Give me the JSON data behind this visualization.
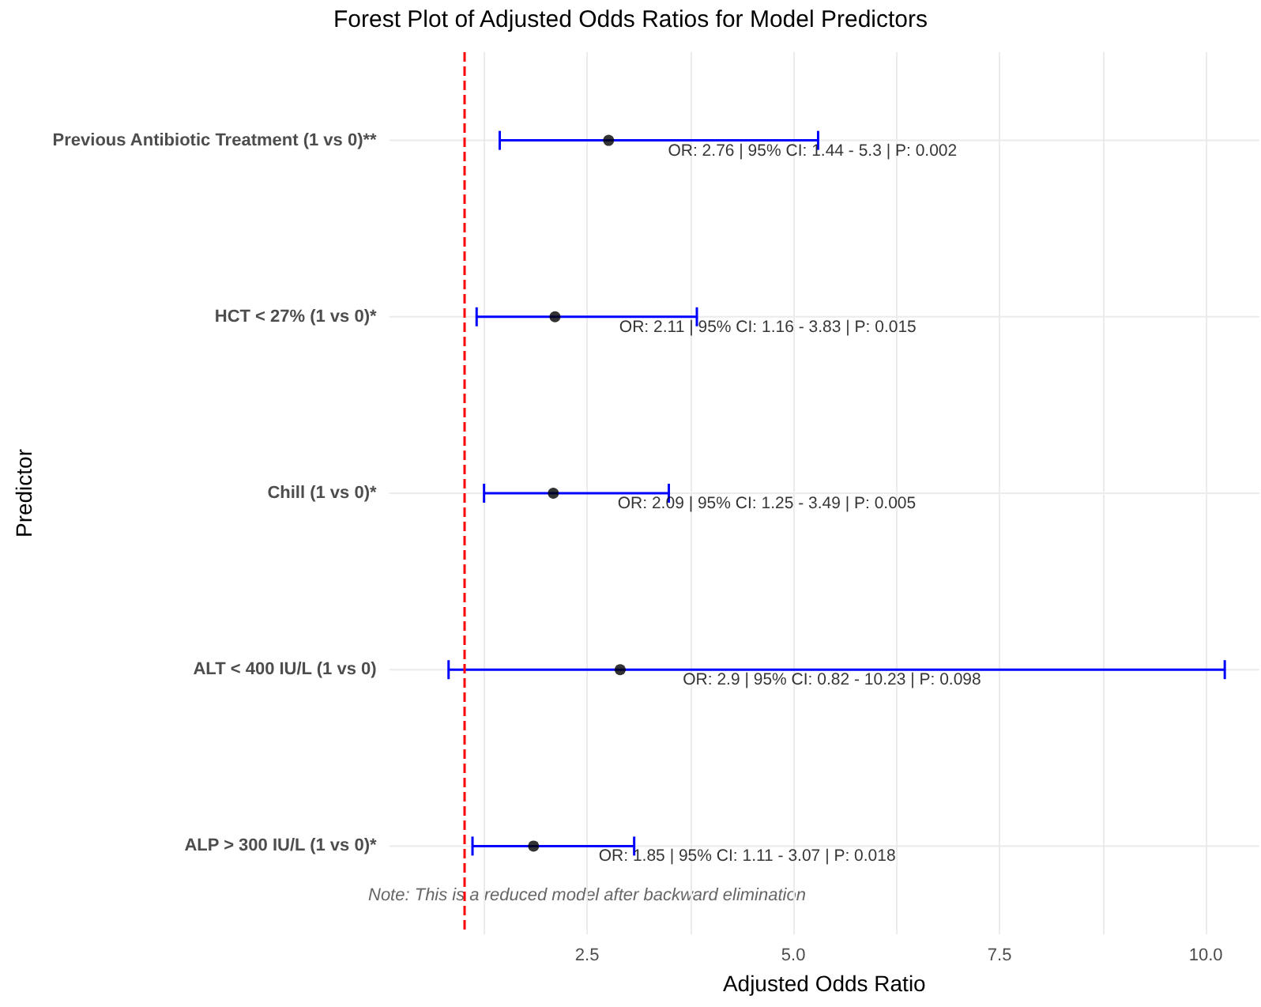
{
  "chart_data": {
    "type": "scatter",
    "orientation": "horizontal",
    "title": "Forest Plot of Adjusted Odds Ratios for Model Predictors",
    "xlabel": "Adjusted Odds Ratio",
    "ylabel": "Predictor",
    "categories": [
      "Previous Antibiotic Treatment (1 vs 0)**",
      "HCT < 27% (1 vs 0)*",
      "Chill (1 vs 0)*",
      "ALT < 400 IU/L (1 vs 0)",
      "ALP > 300 IU/L (1 vs 0)*"
    ],
    "series": [
      {
        "color": "#000000",
        "values": [
          2.76,
          2.11,
          2.09,
          2.9,
          1.85
        ],
        "errors": [
          [
            1.44,
            5.3
          ],
          [
            1.16,
            3.83
          ],
          [
            1.25,
            3.49
          ],
          [
            0.82,
            10.23
          ],
          [
            1.11,
            3.07
          ]
        ]
      }
    ],
    "xlim": [
      0.1,
      10.65
    ],
    "xticks": [
      {
        "value": 1.25,
        "label": null
      },
      2.5,
      {
        "value": 3.75,
        "label": null
      },
      {
        "value": 5,
        "label": "5.0"
      },
      {
        "value": 6.25,
        "label": null
      },
      7.5,
      {
        "value": 8.75,
        "label": null
      },
      {
        "value": 10,
        "label": "10.0"
      }
    ],
    "ref_lines": [
      {
        "axis": "x",
        "value": 1,
        "color": "#ff0000",
        "line_style": "dashed"
      }
    ],
    "annotations": [
      {
        "text": "OR: 2.76 | 95% CI: 1.44 - 5.3 | P: 0.002",
        "x": 3.48,
        "y": "Previous Antibiotic Treatment (1 vs 0)**"
      },
      {
        "text": "OR: 2.11 | 95% CI: 1.16 - 3.83 | P: 0.015",
        "x": 2.89,
        "y": "HCT < 27% (1 vs 0)*"
      },
      {
        "text": "OR: 2.09 | 95% CI: 1.25 - 3.49 | P: 0.005",
        "x": 2.87,
        "y": "Chill (1 vs 0)*"
      },
      {
        "text": "OR: 2.9 | 95% CI: 0.82 - 10.23 | P: 0.098",
        "x": 3.66,
        "y": "ALT < 400 IU/L (1 vs 0)"
      },
      {
        "text": "OR: 1.85 | 95% CI: 1.11 - 3.07 | P: 0.018",
        "x": 2.64,
        "y": "ALP > 300 IU/L (1 vs 0)*"
      },
      "Note: This is a reduced model after backward elimination"
    ],
    "grid": true,
    "marker": "circle"
  }
}
